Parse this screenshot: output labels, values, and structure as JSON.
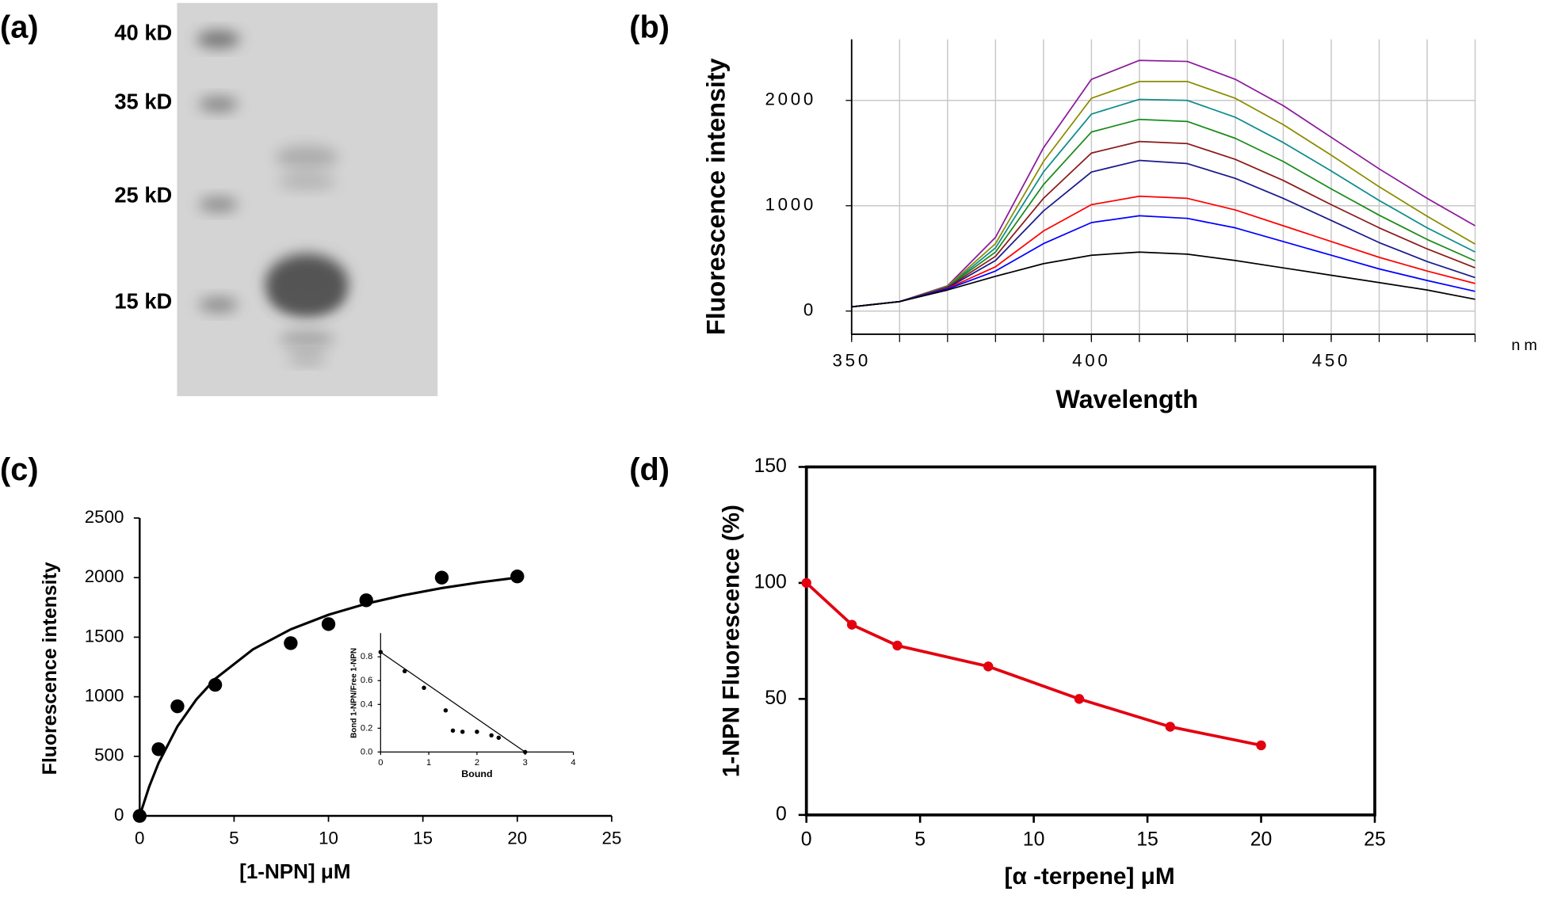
{
  "chart_data": [
    {
      "type": "gel",
      "label": "(a)",
      "markers": [
        "40 kD",
        "35 kD",
        "25 kD",
        "15 kD"
      ]
    },
    {
      "type": "line",
      "label": "(b)",
      "xlabel": "Wavelength",
      "ylabel": "Fluorescence intensity",
      "xunit": "nm",
      "x": [
        350,
        360,
        370,
        380,
        390,
        400,
        410,
        420,
        430,
        440,
        450,
        460,
        470,
        480
      ],
      "xlim": [
        350,
        480
      ],
      "ylim": [
        -220,
        2580
      ],
      "xticks": [
        350,
        400,
        450
      ],
      "yticks": [
        0,
        1000,
        2000
      ],
      "xgrid": [
        350,
        360,
        370,
        380,
        390,
        400,
        410,
        420,
        430,
        440,
        450,
        460,
        470,
        480
      ],
      "grid": true,
      "series": [
        {
          "color": "#8b1a9b",
          "values": [
            40,
            90,
            240,
            700,
            1550,
            2200,
            2380,
            2370,
            2200,
            1950,
            1650,
            1350,
            1070,
            810
          ]
        },
        {
          "color": "#8b8b00",
          "values": [
            40,
            90,
            235,
            640,
            1420,
            2020,
            2180,
            2180,
            2020,
            1770,
            1480,
            1180,
            900,
            636
          ]
        },
        {
          "color": "#0d8b8b",
          "values": [
            40,
            90,
            230,
            600,
            1320,
            1870,
            2010,
            2000,
            1840,
            1600,
            1330,
            1050,
            790,
            561
          ]
        },
        {
          "color": "#1a8b1a",
          "values": [
            40,
            90,
            230,
            560,
            1200,
            1700,
            1820,
            1800,
            1640,
            1420,
            1160,
            910,
            680,
            477
          ]
        },
        {
          "color": "#8b1a1a",
          "values": [
            40,
            90,
            225,
            520,
            1070,
            1500,
            1610,
            1590,
            1440,
            1240,
            1010,
            790,
            590,
            411
          ]
        },
        {
          "color": "#1a1a8b",
          "values": [
            40,
            90,
            220,
            480,
            950,
            1320,
            1430,
            1400,
            1260,
            1070,
            860,
            650,
            470,
            318
          ]
        },
        {
          "color": "#ff0000",
          "values": [
            40,
            90,
            215,
            420,
            760,
            1010,
            1090,
            1070,
            960,
            810,
            660,
            510,
            380,
            262
          ]
        },
        {
          "color": "#0000ff",
          "values": [
            40,
            90,
            210,
            380,
            640,
            840,
            905,
            880,
            790,
            660,
            530,
            400,
            290,
            187
          ]
        },
        {
          "color": "#000000",
          "values": [
            40,
            90,
            200,
            330,
            450,
            530,
            560,
            540,
            480,
            410,
            340,
            270,
            200,
            112
          ]
        }
      ]
    },
    {
      "type": "scatter",
      "label": "(c)",
      "xlabel": "[1-NPN]  μM",
      "ylabel": "Fluorescence intensity",
      "x": [
        0,
        1,
        2,
        4,
        8,
        10,
        12,
        16,
        20
      ],
      "values": [
        0,
        560,
        920,
        1100,
        1450,
        1610,
        1810,
        2000,
        2010
      ],
      "color": "#000000",
      "fit": {
        "x": [
          0,
          0.5,
          1,
          2,
          3,
          4,
          6,
          8,
          10,
          12,
          14,
          16,
          18,
          20
        ],
        "values": [
          0,
          244,
          444,
          751,
          977,
          1150,
          1398,
          1566,
          1688,
          1781,
          1853,
          1912,
          1960,
          2000
        ]
      },
      "xlim": [
        0,
        25
      ],
      "ylim": [
        0,
        2500
      ],
      "xticks": [
        0,
        5,
        10,
        15,
        20,
        25
      ],
      "yticks": [
        0,
        500,
        1000,
        1500,
        2000,
        2500
      ],
      "inset": {
        "type": "scatter",
        "xlabel": "Bound",
        "ylabel": "Bond 1-NPN/Free 1-NPN",
        "x": [
          0,
          0.5,
          0.9,
          1.35,
          1.5,
          1.7,
          2.0,
          2.3,
          2.45,
          3.0
        ],
        "values": [
          0.84,
          0.68,
          0.54,
          0.35,
          0.18,
          0.17,
          0.17,
          0.14,
          0.12,
          0
        ],
        "color": "#000000",
        "fit": {
          "x": [
            0,
            3
          ],
          "values": [
            0.84,
            0
          ]
        },
        "xlim": [
          0,
          4
        ],
        "ylim": [
          0,
          1
        ],
        "xticks": [
          0,
          1,
          2,
          3,
          4
        ],
        "yticks": [
          {
            "value": 0,
            "label": "0.0"
          },
          0.2,
          0.4,
          0.6,
          0.8
        ]
      }
    },
    {
      "type": "line",
      "label": "(d)",
      "xlabel": "[α -terpene] μM",
      "ylabel": "1-NPN Fluorescence (%)",
      "x": [
        0,
        2,
        4,
        8,
        12,
        16,
        20
      ],
      "values": [
        100,
        82,
        73,
        64,
        50,
        38,
        30
      ],
      "color": "#e3000f",
      "markers": true,
      "frame": true,
      "xlim": [
        0,
        25
      ],
      "ylim": [
        0,
        150
      ],
      "xticks": [
        0,
        5,
        10,
        15,
        20,
        25
      ],
      "yticks": [
        0,
        50,
        100,
        150
      ]
    }
  ]
}
